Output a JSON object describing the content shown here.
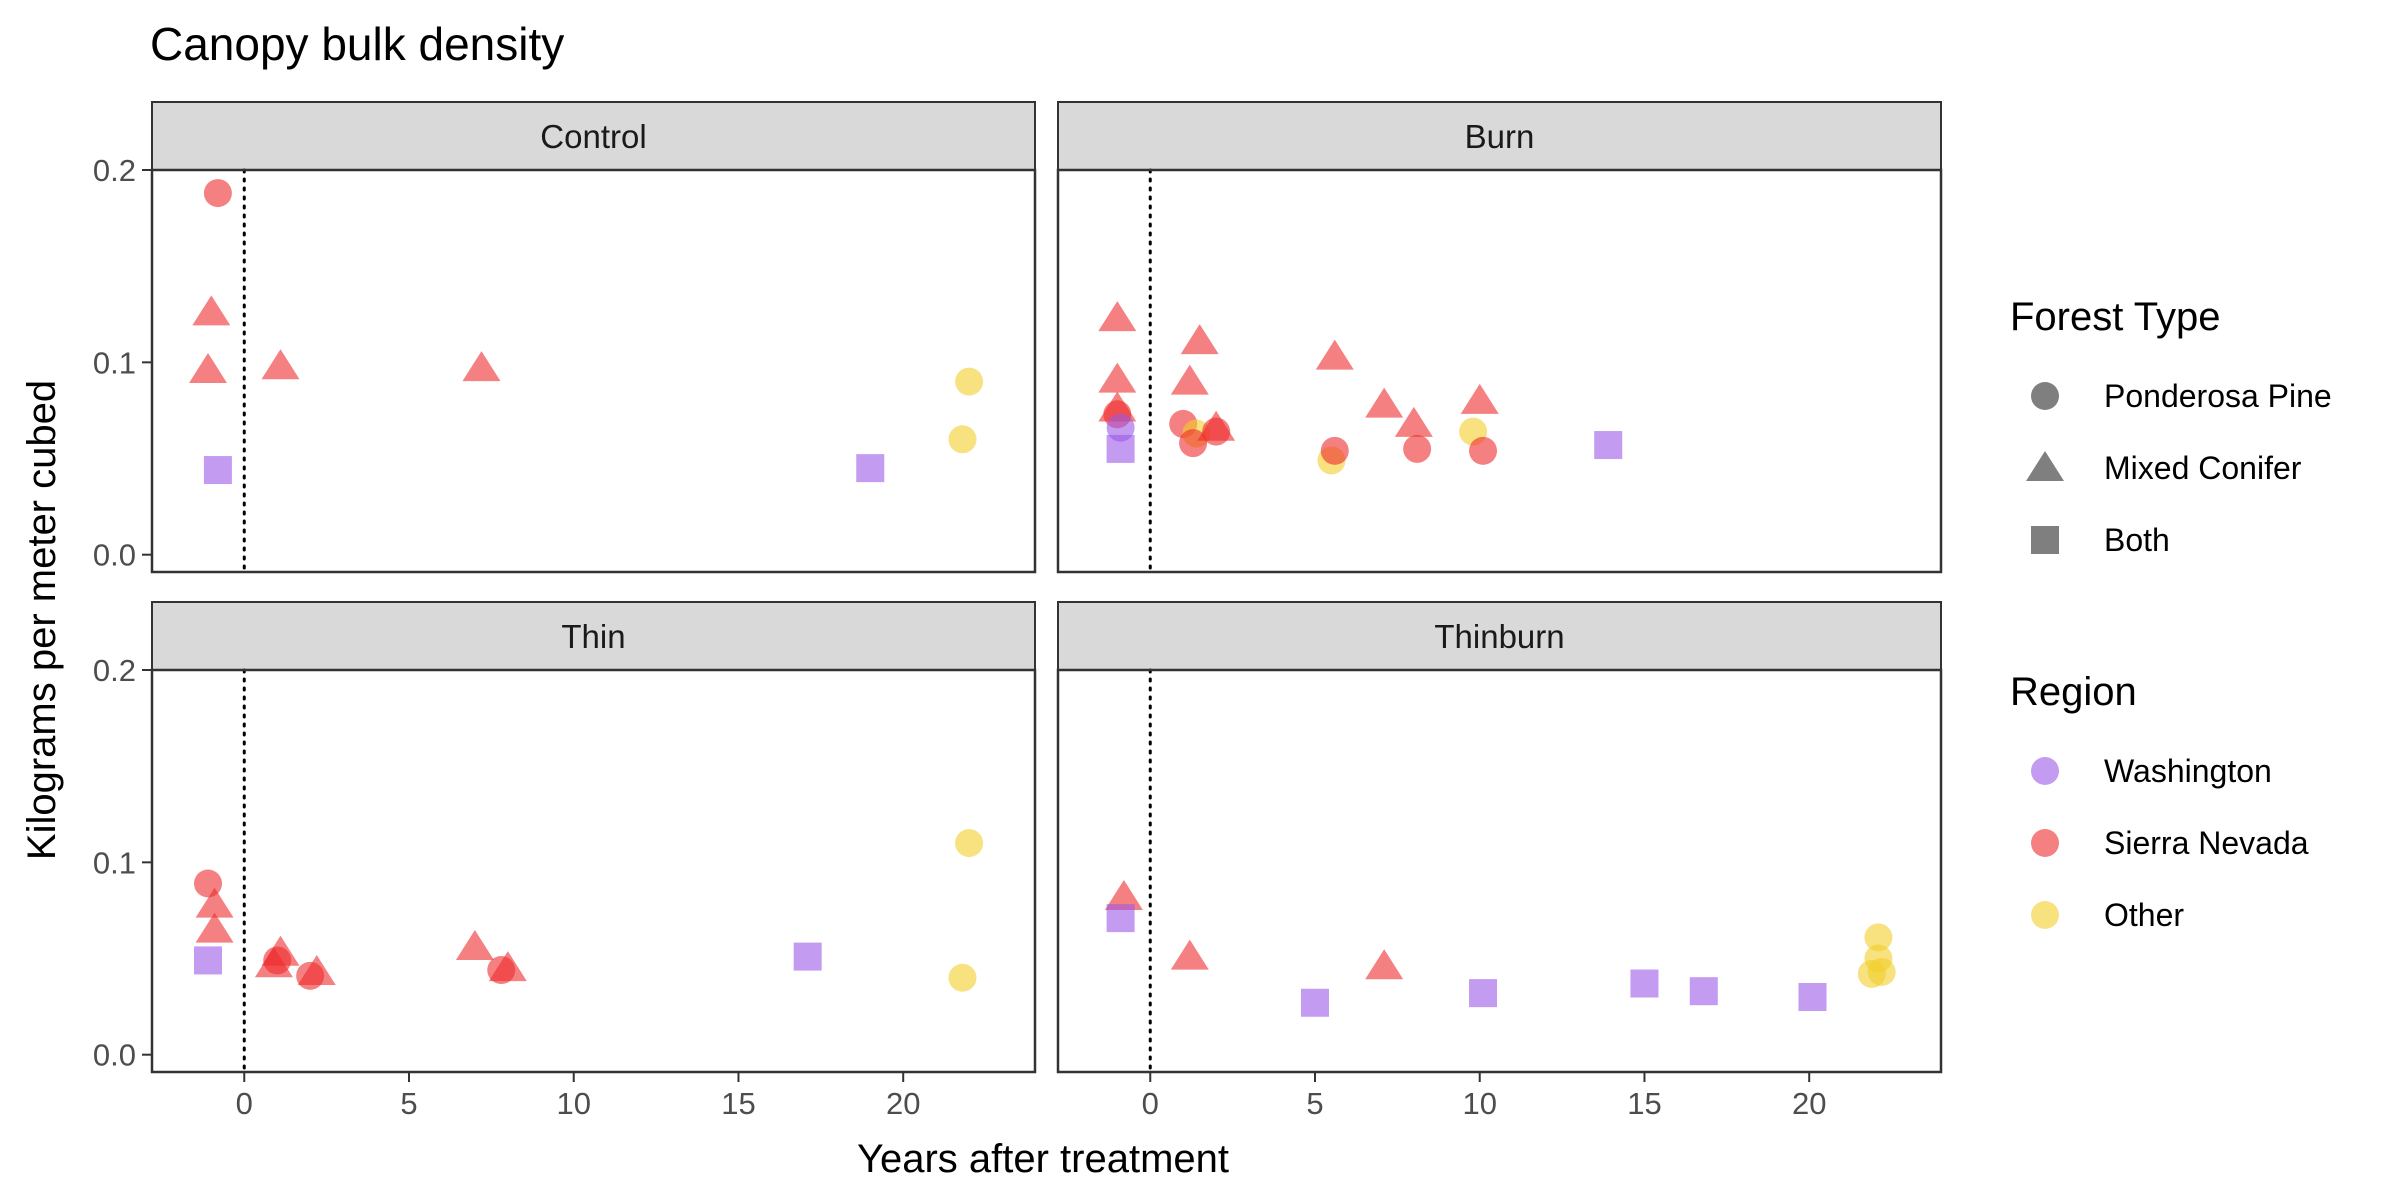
{
  "chart_data": {
    "type": "scatter",
    "title": "Canopy bulk density",
    "xlabel": "Years after treatment",
    "ylabel": "Kilograms per meter cubed",
    "xlim": [
      -2.8,
      24.0
    ],
    "ylim": [
      -0.009,
      0.2
    ],
    "x_ticks": [
      0,
      5,
      10,
      15,
      20
    ],
    "x_tick_labels": [
      "0",
      "5",
      "10",
      "15",
      "20"
    ],
    "y_ticks": [
      0.0,
      0.1,
      0.2
    ],
    "y_tick_labels": [
      "0.0",
      "0.1",
      "0.2"
    ],
    "reference_line": {
      "x": 0,
      "style": "dotted"
    },
    "grid": false,
    "legend_placement": "right",
    "legends": {
      "shape": {
        "title": "Forest Type",
        "entries": [
          {
            "label": "Ponderosa Pine",
            "shape": "circle"
          },
          {
            "label": "Mixed Conifer",
            "shape": "triangle"
          },
          {
            "label": "Both",
            "shape": "square"
          }
        ]
      },
      "color": {
        "title": "Region",
        "entries": [
          {
            "label": "Washington",
            "color": "#9B59E6"
          },
          {
            "label": "Sierra Nevada",
            "color": "#EF2B2D"
          },
          {
            "label": "Other",
            "color": "#F2CF2A"
          }
        ]
      }
    },
    "panels": [
      {
        "name": "Control",
        "points": [
          {
            "x": -0.8,
            "y": 0.188,
            "forest": "Ponderosa Pine",
            "region": "Sierra Nevada"
          },
          {
            "x": -1.0,
            "y": 0.126,
            "forest": "Mixed Conifer",
            "region": "Sierra Nevada"
          },
          {
            "x": -1.1,
            "y": 0.096,
            "forest": "Mixed Conifer",
            "region": "Sierra Nevada"
          },
          {
            "x": 1.1,
            "y": 0.098,
            "forest": "Mixed Conifer",
            "region": "Sierra Nevada"
          },
          {
            "x": 7.2,
            "y": 0.097,
            "forest": "Mixed Conifer",
            "region": "Sierra Nevada"
          },
          {
            "x": -0.8,
            "y": 0.044,
            "forest": "Both",
            "region": "Washington"
          },
          {
            "x": 19.0,
            "y": 0.045,
            "forest": "Both",
            "region": "Washington"
          },
          {
            "x": 22.0,
            "y": 0.09,
            "forest": "Ponderosa Pine",
            "region": "Other"
          },
          {
            "x": 21.8,
            "y": 0.06,
            "forest": "Ponderosa Pine",
            "region": "Other"
          }
        ]
      },
      {
        "name": "Burn",
        "points": [
          {
            "x": -1.0,
            "y": 0.123,
            "forest": "Mixed Conifer",
            "region": "Sierra Nevada"
          },
          {
            "x": -1.0,
            "y": 0.091,
            "forest": "Mixed Conifer",
            "region": "Sierra Nevada"
          },
          {
            "x": -1.0,
            "y": 0.076,
            "forest": "Mixed Conifer",
            "region": "Sierra Nevada"
          },
          {
            "x": -1.0,
            "y": 0.073,
            "forest": "Ponderosa Pine",
            "region": "Sierra Nevada"
          },
          {
            "x": -0.9,
            "y": 0.066,
            "forest": "Ponderosa Pine",
            "region": "Washington"
          },
          {
            "x": -0.9,
            "y": 0.055,
            "forest": "Both",
            "region": "Washington"
          },
          {
            "x": 1.5,
            "y": 0.111,
            "forest": "Mixed Conifer",
            "region": "Sierra Nevada"
          },
          {
            "x": 1.2,
            "y": 0.09,
            "forest": "Mixed Conifer",
            "region": "Sierra Nevada"
          },
          {
            "x": 1.0,
            "y": 0.068,
            "forest": "Ponderosa Pine",
            "region": "Sierra Nevada"
          },
          {
            "x": 1.4,
            "y": 0.063,
            "forest": "Ponderosa Pine",
            "region": "Other"
          },
          {
            "x": 1.3,
            "y": 0.058,
            "forest": "Ponderosa Pine",
            "region": "Sierra Nevada"
          },
          {
            "x": 2.0,
            "y": 0.066,
            "forest": "Mixed Conifer",
            "region": "Sierra Nevada"
          },
          {
            "x": 2.0,
            "y": 0.064,
            "forest": "Ponderosa Pine",
            "region": "Sierra Nevada"
          },
          {
            "x": 5.6,
            "y": 0.103,
            "forest": "Mixed Conifer",
            "region": "Sierra Nevada"
          },
          {
            "x": 5.5,
            "y": 0.049,
            "forest": "Ponderosa Pine",
            "region": "Other"
          },
          {
            "x": 5.6,
            "y": 0.054,
            "forest": "Ponderosa Pine",
            "region": "Sierra Nevada"
          },
          {
            "x": 7.1,
            "y": 0.078,
            "forest": "Mixed Conifer",
            "region": "Sierra Nevada"
          },
          {
            "x": 8.0,
            "y": 0.068,
            "forest": "Mixed Conifer",
            "region": "Sierra Nevada"
          },
          {
            "x": 8.1,
            "y": 0.055,
            "forest": "Ponderosa Pine",
            "region": "Sierra Nevada"
          },
          {
            "x": 9.8,
            "y": 0.064,
            "forest": "Ponderosa Pine",
            "region": "Other"
          },
          {
            "x": 10.0,
            "y": 0.08,
            "forest": "Mixed Conifer",
            "region": "Sierra Nevada"
          },
          {
            "x": 10.1,
            "y": 0.054,
            "forest": "Ponderosa Pine",
            "region": "Sierra Nevada"
          },
          {
            "x": 13.9,
            "y": 0.057,
            "forest": "Both",
            "region": "Washington"
          }
        ]
      },
      {
        "name": "Thin",
        "points": [
          {
            "x": -1.1,
            "y": 0.089,
            "forest": "Ponderosa Pine",
            "region": "Sierra Nevada"
          },
          {
            "x": -0.9,
            "y": 0.078,
            "forest": "Mixed Conifer",
            "region": "Sierra Nevada"
          },
          {
            "x": -0.9,
            "y": 0.065,
            "forest": "Mixed Conifer",
            "region": "Sierra Nevada"
          },
          {
            "x": -1.1,
            "y": 0.049,
            "forest": "Both",
            "region": "Washington"
          },
          {
            "x": 1.1,
            "y": 0.053,
            "forest": "Mixed Conifer",
            "region": "Sierra Nevada"
          },
          {
            "x": 0.9,
            "y": 0.047,
            "forest": "Mixed Conifer",
            "region": "Sierra Nevada"
          },
          {
            "x": 1.0,
            "y": 0.049,
            "forest": "Ponderosa Pine",
            "region": "Sierra Nevada"
          },
          {
            "x": 2.2,
            "y": 0.043,
            "forest": "Mixed Conifer",
            "region": "Sierra Nevada"
          },
          {
            "x": 2.0,
            "y": 0.041,
            "forest": "Ponderosa Pine",
            "region": "Sierra Nevada"
          },
          {
            "x": 7.0,
            "y": 0.056,
            "forest": "Mixed Conifer",
            "region": "Sierra Nevada"
          },
          {
            "x": 8.0,
            "y": 0.045,
            "forest": "Mixed Conifer",
            "region": "Sierra Nevada"
          },
          {
            "x": 7.8,
            "y": 0.044,
            "forest": "Ponderosa Pine",
            "region": "Sierra Nevada"
          },
          {
            "x": 17.1,
            "y": 0.051,
            "forest": "Both",
            "region": "Washington"
          },
          {
            "x": 22.0,
            "y": 0.11,
            "forest": "Ponderosa Pine",
            "region": "Other"
          },
          {
            "x": 21.8,
            "y": 0.04,
            "forest": "Ponderosa Pine",
            "region": "Other"
          }
        ]
      },
      {
        "name": "Thinburn",
        "points": [
          {
            "x": -0.8,
            "y": 0.082,
            "forest": "Mixed Conifer",
            "region": "Sierra Nevada"
          },
          {
            "x": -0.9,
            "y": 0.071,
            "forest": "Both",
            "region": "Washington"
          },
          {
            "x": 1.2,
            "y": 0.051,
            "forest": "Mixed Conifer",
            "region": "Sierra Nevada"
          },
          {
            "x": 5.0,
            "y": 0.027,
            "forest": "Both",
            "region": "Washington"
          },
          {
            "x": 7.1,
            "y": 0.046,
            "forest": "Mixed Conifer",
            "region": "Sierra Nevada"
          },
          {
            "x": 10.1,
            "y": 0.032,
            "forest": "Both",
            "region": "Washington"
          },
          {
            "x": 15.0,
            "y": 0.037,
            "forest": "Both",
            "region": "Washington"
          },
          {
            "x": 16.8,
            "y": 0.033,
            "forest": "Both",
            "region": "Washington"
          },
          {
            "x": 20.1,
            "y": 0.03,
            "forest": "Both",
            "region": "Washington"
          },
          {
            "x": 22.1,
            "y": 0.061,
            "forest": "Ponderosa Pine",
            "region": "Other"
          },
          {
            "x": 22.1,
            "y": 0.05,
            "forest": "Ponderosa Pine",
            "region": "Other"
          },
          {
            "x": 21.9,
            "y": 0.042,
            "forest": "Ponderosa Pine",
            "region": "Other"
          },
          {
            "x": 22.2,
            "y": 0.043,
            "forest": "Ponderosa Pine",
            "region": "Other"
          }
        ]
      }
    ]
  }
}
